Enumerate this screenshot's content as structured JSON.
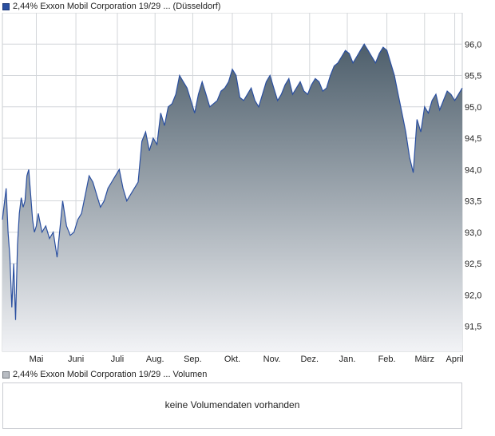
{
  "legend": {
    "price_label": "2,44% Exxon Mobil Corporation 19/29 ... (Düsseldorf)",
    "volume_label": "2,44% Exxon Mobil Corporation 19/29 ... Volumen"
  },
  "volume_panel": {
    "message": "keine Volumendaten vorhanden"
  },
  "colors": {
    "line": "#2a4fa0",
    "fill_top": "#4d5e6b",
    "fill_bottom": "#f2f3f6",
    "grid": "#d3d6da"
  },
  "chart_data": {
    "type": "area",
    "title": "2,44% Exxon Mobil Corporation 19/29 ... (Düsseldorf)",
    "xlabel": "",
    "ylabel": "",
    "ylim": [
      91.1,
      96.5
    ],
    "xlim": [
      0,
      12.2
    ],
    "y_ticks": [
      "91,5",
      "92,0",
      "92,5",
      "93,0",
      "93,5",
      "94,0",
      "94,5",
      "95,0",
      "95,5",
      "96,0"
    ],
    "y_tick_values": [
      91.5,
      92.0,
      92.5,
      93.0,
      93.5,
      94.0,
      94.5,
      95.0,
      95.5,
      96.0
    ],
    "x_ticks": [
      "Mai",
      "Juni",
      "Juli",
      "Aug.",
      "Sep.",
      "Okt.",
      "Nov.",
      "Dez.",
      "Jan.",
      "Feb.",
      "März",
      "April"
    ],
    "x_tick_values": [
      0.9,
      1.95,
      3.05,
      4.05,
      5.05,
      6.1,
      7.15,
      8.15,
      9.15,
      10.2,
      11.2,
      12.0
    ],
    "grid": true,
    "legend_position": "top-left",
    "series": [
      {
        "name": "2,44% Exxon Mobil Corporation 19/29 ... (Düsseldorf)",
        "x": [
          0.0,
          0.1,
          0.15,
          0.2,
          0.25,
          0.3,
          0.35,
          0.4,
          0.45,
          0.5,
          0.55,
          0.6,
          0.65,
          0.7,
          0.75,
          0.8,
          0.85,
          0.9,
          0.95,
          1.05,
          1.15,
          1.25,
          1.35,
          1.45,
          1.6,
          1.7,
          1.8,
          1.9,
          2.0,
          2.1,
          2.2,
          2.3,
          2.4,
          2.5,
          2.6,
          2.7,
          2.8,
          2.9,
          3.0,
          3.1,
          3.2,
          3.3,
          3.4,
          3.5,
          3.6,
          3.7,
          3.8,
          3.9,
          4.0,
          4.1,
          4.2,
          4.3,
          4.4,
          4.5,
          4.6,
          4.7,
          4.8,
          4.9,
          5.0,
          5.1,
          5.2,
          5.3,
          5.4,
          5.5,
          5.6,
          5.7,
          5.8,
          5.9,
          6.0,
          6.1,
          6.2,
          6.3,
          6.4,
          6.5,
          6.6,
          6.7,
          6.8,
          6.9,
          7.0,
          7.1,
          7.2,
          7.3,
          7.4,
          7.5,
          7.6,
          7.7,
          7.8,
          7.9,
          8.0,
          8.1,
          8.2,
          8.3,
          8.4,
          8.5,
          8.6,
          8.7,
          8.8,
          8.9,
          9.0,
          9.1,
          9.2,
          9.3,
          9.4,
          9.5,
          9.6,
          9.7,
          9.8,
          9.9,
          10.0,
          10.1,
          10.2,
          10.3,
          10.4,
          10.5,
          10.6,
          10.7,
          10.8,
          10.9,
          11.0,
          11.1,
          11.2,
          11.3,
          11.4,
          11.5,
          11.6,
          11.7,
          11.8,
          11.9,
          12.0,
          12.1,
          12.2
        ],
        "values": [
          93.2,
          93.7,
          93.0,
          92.6,
          91.8,
          92.5,
          91.6,
          92.8,
          93.3,
          93.55,
          93.4,
          93.5,
          93.9,
          94.0,
          93.6,
          93.2,
          93.0,
          93.1,
          93.3,
          93.0,
          93.1,
          92.9,
          93.0,
          92.6,
          93.5,
          93.1,
          92.95,
          93.0,
          93.2,
          93.3,
          93.6,
          93.9,
          93.8,
          93.6,
          93.4,
          93.5,
          93.7,
          93.8,
          93.9,
          94.0,
          93.7,
          93.5,
          93.6,
          93.7,
          93.8,
          94.45,
          94.6,
          94.3,
          94.5,
          94.4,
          94.9,
          94.7,
          95.0,
          95.05,
          95.2,
          95.5,
          95.4,
          95.3,
          95.1,
          94.9,
          95.2,
          95.4,
          95.2,
          95.0,
          95.05,
          95.1,
          95.25,
          95.3,
          95.4,
          95.6,
          95.5,
          95.15,
          95.1,
          95.2,
          95.3,
          95.1,
          95.0,
          95.2,
          95.4,
          95.5,
          95.3,
          95.1,
          95.2,
          95.35,
          95.45,
          95.2,
          95.3,
          95.4,
          95.25,
          95.2,
          95.35,
          95.45,
          95.4,
          95.25,
          95.3,
          95.5,
          95.65,
          95.7,
          95.8,
          95.9,
          95.85,
          95.7,
          95.8,
          95.9,
          96.0,
          95.9,
          95.8,
          95.7,
          95.85,
          95.95,
          95.9,
          95.7,
          95.5,
          95.2,
          94.9,
          94.6,
          94.2,
          93.95,
          94.8,
          94.6,
          95.0,
          94.9,
          95.1,
          95.2,
          94.95,
          95.1,
          95.25,
          95.2,
          95.1,
          95.2,
          95.3
        ]
      }
    ]
  }
}
